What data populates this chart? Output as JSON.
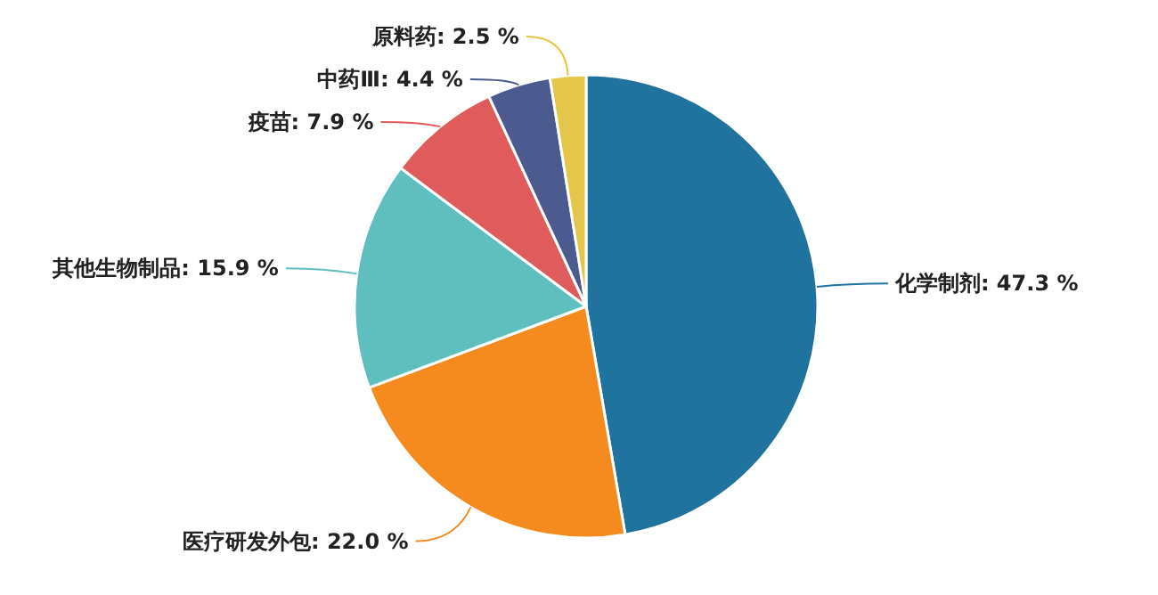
{
  "chart_data": {
    "type": "pie",
    "categories": [
      "化学制剂",
      "医疗研发外包",
      "其他生物制品",
      "疫苗",
      "中药Ⅲ",
      "原料药"
    ],
    "values": [
      47.3,
      22.0,
      15.9,
      7.9,
      4.4,
      2.5
    ],
    "value_labels": [
      "47.3 %",
      "22.0 %",
      "15.9 %",
      "7.9 %",
      "4.4 %",
      "2.5 %"
    ],
    "colors": [
      "#21739f",
      "#f58b1f",
      "#5fbfbf",
      "#e05c5c",
      "#4b5a8f",
      "#e6c64a"
    ]
  }
}
